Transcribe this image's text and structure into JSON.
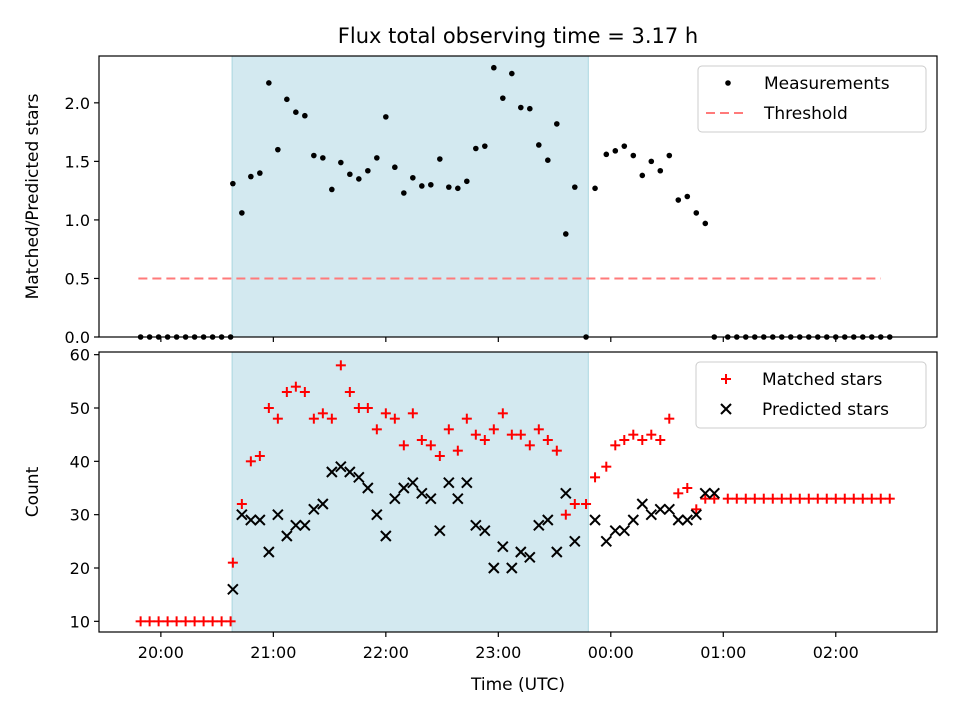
{
  "title": "Flux total observing time = 3.17 h",
  "xlabel": "Time (UTC)",
  "x_ticks": [
    "20:00",
    "21:00",
    "22:00",
    "23:00",
    "00:00",
    "01:00",
    "02:00"
  ],
  "colors": {
    "shade": "#d3e9f0",
    "threshold": "#ff7a7a",
    "matched": "#ff0000",
    "predicted": "#000000",
    "measurement": "#000000"
  },
  "chart_data": [
    {
      "type": "scatter",
      "ylabel": "Matched/Predicted stars",
      "x_range_hours": [
        19.45,
        26.9
      ],
      "ylim": [
        0,
        2.4
      ],
      "y_ticks": [
        0.0,
        0.5,
        1.0,
        1.5,
        2.0
      ],
      "y_tick_labels": [
        "0.0",
        "0.5",
        "1.0",
        "1.5",
        "2.0"
      ],
      "shaded_interval_utc": [
        "20:38",
        "23:48"
      ],
      "legend": {
        "position": "upper-right",
        "entries": [
          "Measurements",
          "Threshold"
        ]
      },
      "threshold": {
        "name": "Threshold",
        "value": 0.5,
        "x_range": [
          "19.8",
          "26.4"
        ]
      },
      "series": [
        {
          "name": "Measurements",
          "x": [
            19.82,
            19.9,
            19.98,
            20.06,
            20.14,
            20.22,
            20.3,
            20.38,
            20.46,
            20.54,
            20.62,
            20.64,
            20.72,
            20.8,
            20.88,
            20.96,
            21.04,
            21.12,
            21.2,
            21.28,
            21.36,
            21.44,
            21.52,
            21.6,
            21.68,
            21.76,
            21.84,
            21.92,
            22.0,
            22.08,
            22.16,
            22.24,
            22.32,
            22.4,
            22.48,
            22.56,
            22.64,
            22.72,
            22.8,
            22.88,
            22.96,
            23.04,
            23.12,
            23.2,
            23.28,
            23.36,
            23.44,
            23.52,
            23.6,
            23.68,
            23.78,
            23.86,
            23.96,
            24.04,
            24.12,
            24.2,
            24.28,
            24.36,
            24.44,
            24.52,
            24.6,
            24.68,
            24.76,
            24.84,
            24.92,
            25.04,
            25.12,
            25.2,
            25.28,
            25.36,
            25.44,
            25.52,
            25.6,
            25.68,
            25.76,
            25.84,
            25.92,
            26.0,
            26.08,
            26.16,
            26.24,
            26.32,
            26.4,
            26.48
          ],
          "y": [
            0.0,
            0.0,
            0.0,
            0.0,
            0.0,
            0.0,
            0.0,
            0.0,
            0.0,
            0.0,
            0.0,
            1.31,
            1.06,
            1.37,
            1.4,
            2.17,
            1.6,
            2.03,
            1.92,
            1.89,
            1.55,
            1.53,
            1.26,
            1.49,
            1.39,
            1.35,
            1.42,
            1.53,
            1.88,
            1.45,
            1.23,
            1.36,
            1.29,
            1.3,
            1.52,
            1.28,
            1.27,
            1.33,
            1.61,
            1.63,
            2.3,
            2.04,
            2.25,
            1.96,
            1.95,
            1.64,
            1.51,
            1.82,
            0.88,
            1.28,
            0.0,
            1.27,
            1.56,
            1.59,
            1.63,
            1.55,
            1.38,
            1.5,
            1.42,
            1.55,
            1.17,
            1.2,
            1.06,
            0.97,
            0.0,
            0.0,
            0.0,
            0.0,
            0.0,
            0.0,
            0.0,
            0.0,
            0.0,
            0.0,
            0.0,
            0.0,
            0.0,
            0.0,
            0.0,
            0.0,
            0.0,
            0.0,
            0.0,
            0.0
          ]
        }
      ]
    },
    {
      "type": "scatter",
      "ylabel": "Count",
      "x_range_hours": [
        19.45,
        26.9
      ],
      "ylim": [
        8,
        60.5
      ],
      "y_ticks": [
        10,
        20,
        30,
        40,
        50,
        60
      ],
      "y_tick_labels": [
        "10",
        "20",
        "30",
        "40",
        "50",
        "60"
      ],
      "shaded_interval_utc": [
        "20:38",
        "23:48"
      ],
      "legend": {
        "position": "upper-right",
        "entries": [
          "Matched stars",
          "Predicted stars"
        ]
      },
      "series": [
        {
          "name": "Matched stars",
          "marker": "plus",
          "x": [
            19.82,
            19.9,
            19.98,
            20.06,
            20.14,
            20.22,
            20.3,
            20.38,
            20.46,
            20.54,
            20.62,
            20.64,
            20.72,
            20.8,
            20.88,
            20.96,
            21.04,
            21.12,
            21.2,
            21.28,
            21.36,
            21.44,
            21.52,
            21.6,
            21.68,
            21.76,
            21.84,
            21.92,
            22.0,
            22.08,
            22.16,
            22.24,
            22.32,
            22.4,
            22.48,
            22.56,
            22.64,
            22.72,
            22.8,
            22.88,
            22.96,
            23.04,
            23.12,
            23.2,
            23.28,
            23.36,
            23.44,
            23.52,
            23.6,
            23.68,
            23.78,
            23.86,
            23.96,
            24.04,
            24.12,
            24.2,
            24.28,
            24.36,
            24.44,
            24.52,
            24.6,
            24.68,
            24.76,
            24.84,
            24.92,
            25.04,
            25.12,
            25.2,
            25.28,
            25.36,
            25.44,
            25.52,
            25.6,
            25.68,
            25.76,
            25.84,
            25.92,
            26.0,
            26.08,
            26.16,
            26.24,
            26.32,
            26.4,
            26.48
          ],
          "y": [
            10,
            10,
            10,
            10,
            10,
            10,
            10,
            10,
            10,
            10,
            10,
            21,
            32,
            40,
            41,
            50,
            48,
            53,
            54,
            53,
            48,
            49,
            48,
            58,
            53,
            50,
            50,
            46,
            49,
            48,
            43,
            49,
            44,
            43,
            41,
            46,
            42,
            48,
            45,
            44,
            46,
            49,
            45,
            45,
            43,
            46,
            44,
            42,
            30,
            32,
            32,
            37,
            39,
            43,
            44,
            45,
            44,
            45,
            44,
            48,
            34,
            35,
            31,
            33,
            33,
            33,
            33,
            33,
            33,
            33,
            33,
            33,
            33,
            33,
            33,
            33,
            33,
            33,
            33,
            33,
            33,
            33,
            33,
            33
          ]
        },
        {
          "name": "Predicted stars",
          "marker": "x",
          "x": [
            20.64,
            20.72,
            20.8,
            20.88,
            20.96,
            21.04,
            21.12,
            21.2,
            21.28,
            21.36,
            21.44,
            21.52,
            21.6,
            21.68,
            21.76,
            21.84,
            21.92,
            22.0,
            22.08,
            22.16,
            22.24,
            22.32,
            22.4,
            22.48,
            22.56,
            22.64,
            22.72,
            22.8,
            22.88,
            22.96,
            23.04,
            23.12,
            23.2,
            23.28,
            23.36,
            23.44,
            23.52,
            23.6,
            23.68,
            23.86,
            23.96,
            24.04,
            24.12,
            24.2,
            24.28,
            24.36,
            24.44,
            24.52,
            24.6,
            24.68,
            24.76,
            24.84,
            24.92
          ],
          "y": [
            16,
            30,
            29,
            29,
            23,
            30,
            26,
            28,
            28,
            31,
            32,
            38,
            39,
            38,
            37,
            35,
            30,
            26,
            33,
            35,
            36,
            34,
            33,
            27,
            36,
            33,
            36,
            28,
            27,
            20,
            24,
            20,
            23,
            22,
            28,
            29,
            23,
            34,
            25,
            29,
            25,
            27,
            27,
            29,
            32,
            30,
            31,
            31,
            29,
            29,
            30,
            34,
            34
          ]
        }
      ]
    }
  ]
}
